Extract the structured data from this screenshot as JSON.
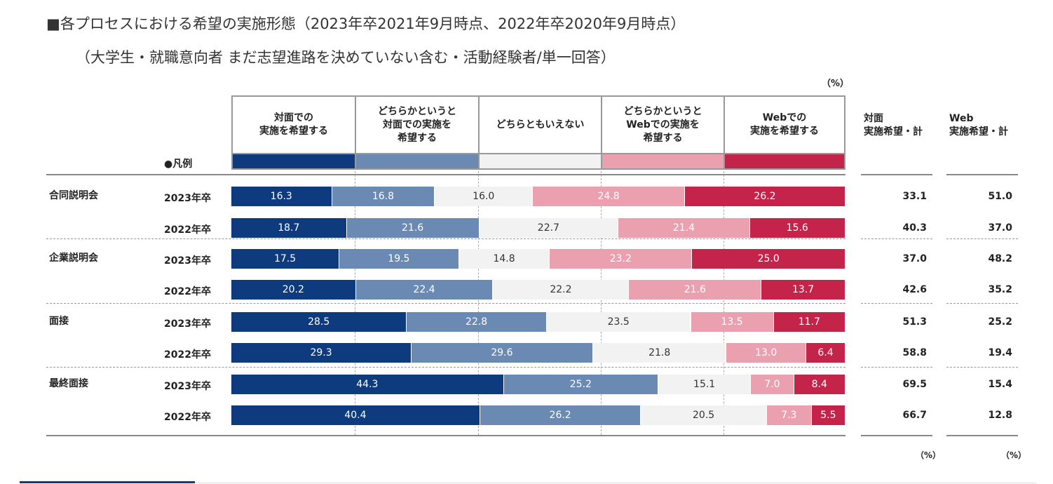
{
  "title_line1": "■各プロセスにおける希望の実施形態（2023年卒2021年9月時点、2022年卒2020年9月時点）",
  "title_line2": "（大学生・就職意向者 まだ志望進路を決めていない含む・活動経験者/単一回答）",
  "unit_top": "（%）",
  "legend_label": "●凡例",
  "legend": [
    {
      "label": "対面での\n実施を希望する",
      "color": "#0e3b7e"
    },
    {
      "label": "どちらかというと\n対面での実施を\n希望する",
      "color": "#6a8ab4"
    },
    {
      "label": "どちらともいえない",
      "color": "#f2f2f2"
    },
    {
      "label": "どちらかというと\nWebでの実施を\n希望する",
      "color": "#eba0b0"
    },
    {
      "label": "Webでの\n実施を希望する",
      "color": "#c4234a"
    }
  ],
  "summary_headers": [
    "対面\n実施希望・計",
    "Web\n実施希望・計"
  ],
  "summary_units": [
    "（%）",
    "（%）"
  ],
  "chart_data": {
    "type": "bar",
    "stacked": true,
    "orientation": "horizontal",
    "xlim": [
      0,
      100
    ],
    "groups": [
      {
        "category": "合同説明会",
        "rows": [
          {
            "year": "2023年卒",
            "values": [
              16.3,
              16.8,
              16.0,
              24.8,
              26.2
            ],
            "face_total": "33.1",
            "web_total": "51.0"
          },
          {
            "year": "2022年卒",
            "values": [
              18.7,
              21.6,
              22.7,
              21.4,
              15.6
            ],
            "face_total": "40.3",
            "web_total": "37.0"
          }
        ]
      },
      {
        "category": "企業説明会",
        "rows": [
          {
            "year": "2023年卒",
            "values": [
              17.5,
              19.5,
              14.8,
              23.2,
              25.0
            ],
            "face_total": "37.0",
            "web_total": "48.2"
          },
          {
            "year": "2022年卒",
            "values": [
              20.2,
              22.4,
              22.2,
              21.6,
              13.7
            ],
            "face_total": "42.6",
            "web_total": "35.2"
          }
        ]
      },
      {
        "category": "面接",
        "rows": [
          {
            "year": "2023年卒",
            "values": [
              28.5,
              22.8,
              23.5,
              13.5,
              11.7
            ],
            "face_total": "51.3",
            "web_total": "25.2"
          },
          {
            "year": "2022年卒",
            "values": [
              29.3,
              29.6,
              21.8,
              13.0,
              6.4
            ],
            "face_total": "58.8",
            "web_total": "19.4"
          }
        ]
      },
      {
        "category": "最終面接",
        "rows": [
          {
            "year": "2023年卒",
            "values": [
              44.3,
              25.2,
              15.1,
              7.0,
              8.4
            ],
            "face_total": "69.5",
            "web_total": "15.4"
          },
          {
            "year": "2022年卒",
            "values": [
              40.4,
              26.2,
              20.5,
              7.3,
              5.5
            ],
            "face_total": "66.7",
            "web_total": "12.8"
          }
        ]
      }
    ]
  }
}
